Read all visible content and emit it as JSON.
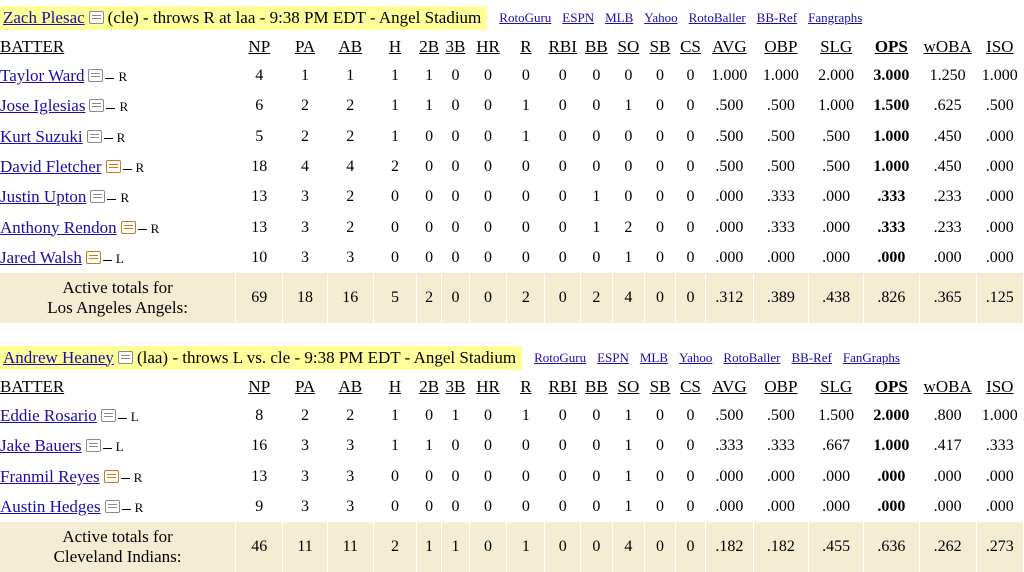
{
  "sections": [
    {
      "pitcher_name": "Zach Plesac",
      "pitcher_info": "(cle) - throws R at laa - 9:38 PM EDT - Angel Stadium",
      "links": [
        "RotoGuru",
        "ESPN",
        "MLB",
        "Yahoo",
        "RotoBaller",
        "BB-Ref",
        "Fangraphs"
      ],
      "columns": [
        "BATTER",
        "NP",
        "PA",
        "AB",
        "H",
        "2B",
        "3B",
        "HR",
        "R",
        "RBI",
        "BB",
        "SO",
        "SB",
        "CS",
        "AVG",
        "OBP",
        "SLG",
        "OPS",
        "wOBA",
        "ISO"
      ],
      "rows": [
        {
          "name": "Taylor Ward",
          "hand": "R",
          "icon": "note",
          "stats": [
            "4",
            "1",
            "1",
            "1",
            "1",
            "0",
            "0",
            "0",
            "0",
            "0",
            "0",
            "0",
            "0",
            "1.000",
            "1.000",
            "2.000",
            "3.000",
            "1.250",
            "1.000"
          ]
        },
        {
          "name": "Jose Iglesias",
          "hand": "R",
          "icon": "note",
          "stats": [
            "6",
            "2",
            "2",
            "1",
            "1",
            "0",
            "0",
            "1",
            "0",
            "0",
            "1",
            "0",
            "0",
            ".500",
            ".500",
            "1.000",
            "1.500",
            ".625",
            ".500"
          ]
        },
        {
          "name": "Kurt Suzuki",
          "hand": "R",
          "icon": "note",
          "stats": [
            "5",
            "2",
            "2",
            "1",
            "0",
            "0",
            "0",
            "1",
            "0",
            "0",
            "0",
            "0",
            "0",
            ".500",
            ".500",
            ".500",
            "1.000",
            ".450",
            ".000"
          ]
        },
        {
          "name": "David Fletcher",
          "hand": "R",
          "icon": "edit",
          "stats": [
            "18",
            "4",
            "4",
            "2",
            "0",
            "0",
            "0",
            "0",
            "0",
            "0",
            "0",
            "0",
            "0",
            ".500",
            ".500",
            ".500",
            "1.000",
            ".450",
            ".000"
          ]
        },
        {
          "name": "Justin Upton",
          "hand": "R",
          "icon": "note",
          "stats": [
            "13",
            "3",
            "2",
            "0",
            "0",
            "0",
            "0",
            "0",
            "0",
            "1",
            "0",
            "0",
            "0",
            ".000",
            ".333",
            ".000",
            ".333",
            ".233",
            ".000"
          ]
        },
        {
          "name": "Anthony Rendon",
          "hand": "R",
          "icon": "edit",
          "stats": [
            "13",
            "3",
            "2",
            "0",
            "0",
            "0",
            "0",
            "0",
            "0",
            "1",
            "2",
            "0",
            "0",
            ".000",
            ".333",
            ".000",
            ".333",
            ".233",
            ".000"
          ]
        },
        {
          "name": "Jared Walsh",
          "hand": "L",
          "icon": "edit",
          "stats": [
            "10",
            "3",
            "3",
            "0",
            "0",
            "0",
            "0",
            "0",
            "0",
            "0",
            "1",
            "0",
            "0",
            ".000",
            ".000",
            ".000",
            ".000",
            ".000",
            ".000"
          ]
        }
      ],
      "totals_label_line1": "Active totals for",
      "totals_label_line2": "Los Angeles Angels:",
      "totals": [
        "69",
        "18",
        "16",
        "5",
        "2",
        "0",
        "0",
        "2",
        "0",
        "2",
        "4",
        "0",
        "0",
        ".312",
        ".389",
        ".438",
        ".826",
        ".365",
        ".125"
      ]
    },
    {
      "pitcher_name": "Andrew Heaney",
      "pitcher_info": "(laa) - throws L vs. cle - 9:38 PM EDT - Angel Stadium",
      "links": [
        "RotoGuru",
        "ESPN",
        "MLB",
        "Yahoo",
        "RotoBaller",
        "BB-Ref",
        "FanGraphs"
      ],
      "columns": [
        "BATTER",
        "NP",
        "PA",
        "AB",
        "H",
        "2B",
        "3B",
        "HR",
        "R",
        "RBI",
        "BB",
        "SO",
        "SB",
        "CS",
        "AVG",
        "OBP",
        "SLG",
        "OPS",
        "wOBA",
        "ISO"
      ],
      "rows": [
        {
          "name": "Eddie Rosario",
          "hand": "L",
          "icon": "note",
          "stats": [
            "8",
            "2",
            "2",
            "1",
            "0",
            "1",
            "0",
            "1",
            "0",
            "0",
            "1",
            "0",
            "0",
            ".500",
            ".500",
            "1.500",
            "2.000",
            ".800",
            "1.000"
          ]
        },
        {
          "name": "Jake Bauers",
          "hand": "L",
          "icon": "note",
          "stats": [
            "16",
            "3",
            "3",
            "1",
            "1",
            "0",
            "0",
            "0",
            "0",
            "0",
            "1",
            "0",
            "0",
            ".333",
            ".333",
            ".667",
            "1.000",
            ".417",
            ".333"
          ]
        },
        {
          "name": "Franmil Reyes",
          "hand": "R",
          "icon": "edit",
          "stats": [
            "13",
            "3",
            "3",
            "0",
            "0",
            "0",
            "0",
            "0",
            "0",
            "0",
            "1",
            "0",
            "0",
            ".000",
            ".000",
            ".000",
            ".000",
            ".000",
            ".000"
          ]
        },
        {
          "name": "Austin Hedges",
          "hand": "R",
          "icon": "note",
          "stats": [
            "9",
            "3",
            "3",
            "0",
            "0",
            "0",
            "0",
            "0",
            "0",
            "0",
            "1",
            "0",
            "0",
            ".000",
            ".000",
            ".000",
            ".000",
            ".000",
            ".000"
          ]
        }
      ],
      "totals_label_line1": "Active totals for",
      "totals_label_line2": "Cleveland Indians:",
      "totals": [
        "46",
        "11",
        "11",
        "2",
        "1",
        "1",
        "0",
        "1",
        "0",
        "0",
        "4",
        "0",
        "0",
        ".182",
        ".182",
        ".455",
        ".636",
        ".262",
        ".273"
      ]
    }
  ]
}
